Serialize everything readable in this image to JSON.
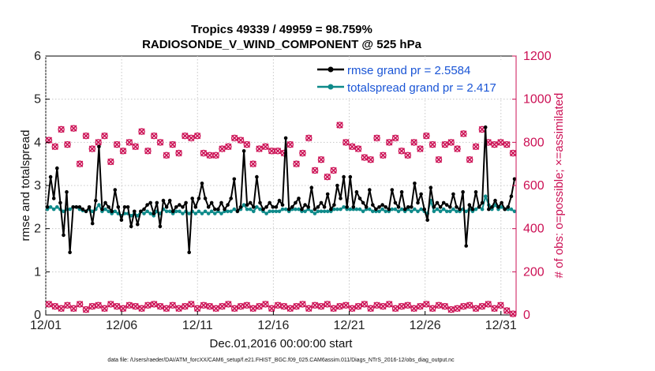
{
  "chart_data": {
    "type": "line",
    "title_line1": "Tropics 49339 / 49959 = 98.759%",
    "title_line2": "RADIOSONDE_V_WIND_COMPONENT @ 525 hPa",
    "xlabel": "Dec.01,2016 00:00:00 start",
    "ylabel": "rmse and totalspread",
    "ylabel_right": "# of obs: o=possible; ×=assimilated",
    "footnote": "data file: /Users/raeder/DAI/ATM_forcXX/CAM6_setup/f.e21.FHIST_BGC.f09_025.CAM6assim.011/Diags_NTrS_2016-12/obs_diag_output.nc",
    "x_tick_values": [
      1,
      6,
      11,
      16,
      21,
      26,
      31
    ],
    "x_tick_labels": [
      "12/01",
      "12/06",
      "12/11",
      "12/16",
      "12/21",
      "12/26",
      "12/31"
    ],
    "xlim": [
      1,
      32
    ],
    "ylim": [
      0,
      6
    ],
    "y_ticks": [
      0,
      1,
      2,
      3,
      4,
      5,
      6
    ],
    "ylim_right": [
      0,
      1200
    ],
    "y_ticks_right": [
      0,
      200,
      400,
      600,
      800,
      1000,
      1200
    ],
    "colors": {
      "rmse": "#000000",
      "spread": "#0e8a8a",
      "obs": "#cc1155",
      "legend_text": "#1a55d6"
    },
    "series": [
      {
        "name": "rmse grand pr = 2.5584",
        "values": [
          2.5,
          3.2,
          2.7,
          3.4,
          2.6,
          1.85,
          2.85,
          1.45,
          2.5,
          2.5,
          2.5,
          2.45,
          2.4,
          2.5,
          2.12,
          2.65,
          3.9,
          2.45,
          2.6,
          2.5,
          2.4,
          2.9,
          2.5,
          2.2,
          2.5,
          2.5,
          2.05,
          2.4,
          2.1,
          2.4,
          2.45,
          2.55,
          2.6,
          2.35,
          2.6,
          2.05,
          2.65,
          2.5,
          2.65,
          2.4,
          2.5,
          2.55,
          2.5,
          2.6,
          1.45,
          2.7,
          2.5,
          2.7,
          3.05,
          2.7,
          2.5,
          2.6,
          2.45,
          2.45,
          2.6,
          2.45,
          2.55,
          2.7,
          3.15,
          2.4,
          2.5,
          3.8,
          2.55,
          2.6,
          2.5,
          3.2,
          2.6,
          2.45,
          2.5,
          2.6,
          2.5,
          2.5,
          2.65,
          2.55,
          4.1,
          2.45,
          2.5,
          2.6,
          2.7,
          2.45,
          2.55,
          2.5,
          2.95,
          2.45,
          2.5,
          2.6,
          2.5,
          2.8,
          2.45,
          2.55,
          3.0,
          2.7,
          3.2,
          2.5,
          3.2,
          2.5,
          2.85,
          2.7,
          2.6,
          2.5,
          2.9,
          2.55,
          2.45,
          2.5,
          2.55,
          2.5,
          2.45,
          2.9,
          2.6,
          2.5,
          2.85,
          2.45,
          2.5,
          2.5,
          3.05,
          2.6,
          2.8,
          2.45,
          2.2,
          2.95,
          2.5,
          2.6,
          2.5,
          2.6,
          2.55,
          2.5,
          2.8,
          2.5,
          2.45,
          2.85,
          1.6,
          2.55,
          2.45,
          2.85,
          2.5,
          2.6,
          4.35,
          2.45,
          2.5,
          2.65,
          2.5,
          2.6,
          2.45,
          2.5,
          2.75,
          3.15
        ]
      },
      {
        "name": "totalspread grand pr = 2.417",
        "values": [
          2.45,
          2.5,
          2.45,
          2.5,
          2.45,
          2.4,
          2.45,
          2.45,
          2.5,
          2.5,
          2.45,
          2.42,
          2.4,
          2.45,
          2.4,
          2.45,
          2.55,
          2.4,
          2.45,
          2.4,
          2.35,
          2.4,
          2.35,
          2.3,
          2.35,
          2.35,
          2.3,
          2.35,
          2.3,
          2.4,
          2.35,
          2.4,
          2.35,
          2.3,
          2.4,
          2.35,
          2.45,
          2.4,
          2.4,
          2.35,
          2.4,
          2.4,
          2.35,
          2.4,
          2.35,
          2.4,
          2.35,
          2.4,
          2.35,
          2.4,
          2.35,
          2.4,
          2.35,
          2.4,
          2.35,
          2.4,
          2.4,
          2.4,
          2.45,
          2.4,
          2.45,
          2.55,
          2.45,
          2.45,
          2.4,
          2.5,
          2.45,
          2.4,
          2.35,
          2.4,
          2.4,
          2.4,
          2.4,
          2.45,
          2.45,
          2.4,
          2.45,
          2.45,
          2.45,
          2.4,
          2.4,
          2.45,
          2.4,
          2.35,
          2.4,
          2.4,
          2.4,
          2.4,
          2.4,
          2.45,
          2.45,
          2.45,
          2.5,
          2.45,
          2.45,
          2.45,
          2.45,
          2.45,
          2.4,
          2.45,
          2.45,
          2.4,
          2.4,
          2.4,
          2.45,
          2.4,
          2.4,
          2.45,
          2.45,
          2.4,
          2.45,
          2.4,
          2.45,
          2.4,
          2.45,
          2.4,
          2.45,
          2.4,
          2.35,
          2.65,
          2.4,
          2.45,
          2.4,
          2.45,
          2.4,
          2.4,
          2.45,
          2.4,
          2.4,
          2.45,
          2.4,
          2.45,
          2.4,
          2.45,
          2.5,
          2.45,
          2.75,
          2.55,
          2.45,
          2.55,
          2.45,
          2.5,
          2.45,
          2.45,
          2.45,
          2.4
        ]
      }
    ],
    "obs_high_values": [
      810,
      780,
      860,
      790,
      865,
      700,
      830,
      770,
      800,
      830,
      710,
      790,
      760,
      800,
      780,
      850,
      760,
      830,
      800,
      740,
      790,
      750,
      830,
      820,
      830,
      750,
      740,
      740,
      770,
      780,
      820,
      810,
      790,
      700,
      770,
      780,
      760,
      760,
      750,
      790,
      700,
      750,
      820,
      670,
      720,
      640,
      670,
      880,
      800,
      780,
      770,
      730,
      720,
      820,
      740,
      800,
      820,
      760,
      740,
      800,
      770,
      830,
      790,
      720,
      790,
      800,
      770,
      840,
      720,
      780,
      860,
      800,
      790,
      800,
      790,
      750
    ],
    "obs_low_values": [
      50,
      40,
      30,
      45,
      30,
      50,
      25,
      40,
      45,
      30,
      50,
      40,
      30,
      45,
      40,
      30,
      45,
      50,
      40,
      30,
      45,
      30,
      40,
      50,
      30,
      45,
      40,
      30,
      40,
      50,
      30,
      40,
      45,
      30,
      40,
      50,
      30,
      45,
      40,
      30,
      40,
      50,
      30,
      45,
      40,
      50,
      30,
      40,
      45,
      30,
      40,
      50,
      30,
      45,
      40,
      50,
      30,
      40,
      45,
      30,
      40,
      50,
      30,
      45,
      40,
      25,
      30,
      40,
      45,
      30,
      40,
      50,
      30,
      45,
      20,
      5
    ]
  }
}
